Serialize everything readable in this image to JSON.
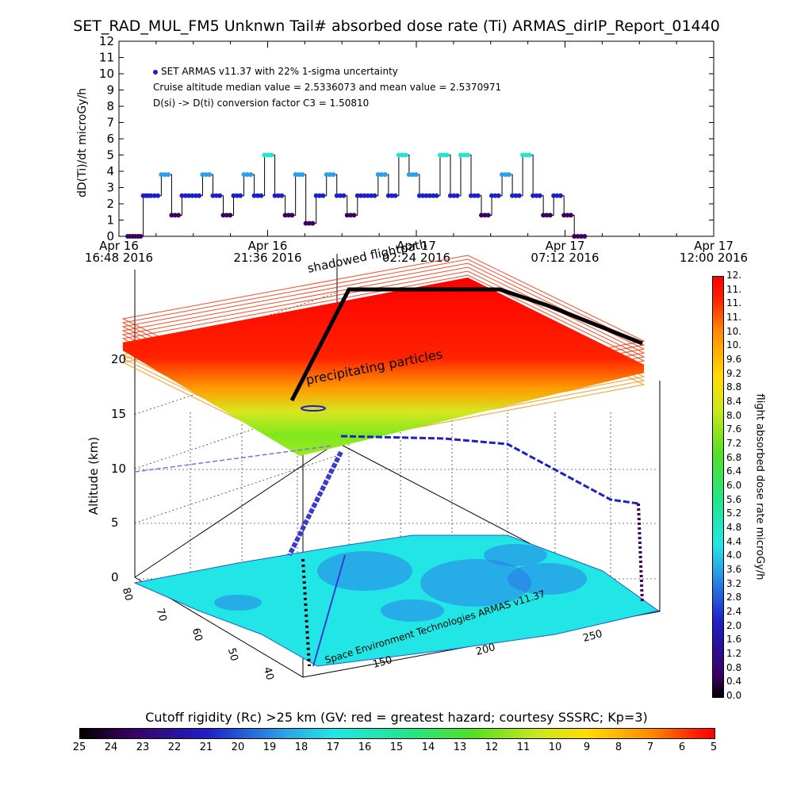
{
  "title": "SET_RAD_MUL_FM5 Unknwn Tail#  absorbed dose rate (Ti) ARMAS_dirIP_Report_01440",
  "top_plot": {
    "ylabel": "dD(Ti)/dt microGy/h",
    "yticks": [
      "0",
      "1",
      "2",
      "3",
      "4",
      "5",
      "6",
      "7",
      "8",
      "9",
      "10",
      "11",
      "12"
    ],
    "xticks": [
      {
        "line1": "Apr 16",
        "line2": "16:48 2016"
      },
      {
        "line1": "Apr 16",
        "line2": "21:36 2016"
      },
      {
        "line1": "Apr 17",
        "line2": "02:24 2016"
      },
      {
        "line1": "Apr 17",
        "line2": "07:12 2016"
      },
      {
        "line1": "Apr 17",
        "line2": "12:00 2016"
      }
    ],
    "legend": {
      "series": "SET ARMAS v11.37 with 22% 1-sigma uncertainty",
      "line2": "Cruise altitude median value = 2.5336073 and mean value = 2.5370971",
      "line3": "D(si) -> D(ti) conversion factor C3 = 1.50810"
    }
  },
  "scene": {
    "altitude_label": "Altitude (km)",
    "altitude_ticks": [
      "0",
      "5",
      "10",
      "15",
      "20"
    ],
    "lon_ticks": [
      "150",
      "200",
      "250"
    ],
    "lat_ticks": [
      "80",
      "70",
      "60",
      "50",
      "40"
    ],
    "annotation_precip": "precipitating particles",
    "annotation_shadow": "shadowed flightpath",
    "credit": "Space Environment Technologies ARMAS v11.37"
  },
  "colorbar_right": {
    "label": "flight absorbed dose rate microGy/h",
    "ticks": [
      "0.0",
      "0.4",
      "0.8",
      "1.2",
      "1.6",
      "2.0",
      "2.4",
      "2.8",
      "3.2",
      "3.6",
      "4.0",
      "4.4",
      "4.8",
      "5.2",
      "5.6",
      "6.0",
      "6.4",
      "6.8",
      "7.2",
      "7.6",
      "8.0",
      "8.4",
      "8.8",
      "9.2",
      "9.6",
      "10.",
      "10.",
      "11.",
      "11.",
      "11.",
      "12."
    ]
  },
  "colorbar_bottom": {
    "title": "Cutoff rigidity (Rc) >25 km (GV: red = greatest hazard; courtesy SSSRC; Kp=3)",
    "ticks": [
      "25",
      "24",
      "23",
      "22",
      "21",
      "20",
      "19",
      "18",
      "17",
      "16",
      "15",
      "14",
      "13",
      "12",
      "11",
      "10",
      "9",
      "8",
      "7",
      "6",
      "5"
    ]
  },
  "colors": {
    "series_dark": "#3a0060",
    "series_blue": "#1f1fc8",
    "series_light": "#2aa0e8",
    "series_cyan": "#22e6d0",
    "plane_red": "#ff0000",
    "plane_green": "#7fe81e",
    "map_cyan": "#22e6e6"
  },
  "chart_data": {
    "type": "line",
    "title": "SET_RAD_MUL_FM5 Unknwn Tail#  absorbed dose rate (Ti) ARMAS_dirIP_Report_01440",
    "xlabel": "",
    "ylabel": "dD(Ti)/dt microGy/h",
    "ylim": [
      0,
      12
    ],
    "x_range": [
      "2016-04-16 16:48",
      "2016-04-17 12:00"
    ],
    "grid": false,
    "legend_position": "top-left",
    "series": [
      {
        "name": "SET ARMAS v11.37 with 22% 1-sigma uncertainty",
        "x": [
          "2016-04-16 17:05",
          "2016-04-16 17:20",
          "2016-04-16 17:35",
          "2016-04-16 17:50",
          "2016-04-16 18:10",
          "2016-04-16 18:30",
          "2016-04-16 18:50",
          "2016-04-16 19:10",
          "2016-04-16 19:30",
          "2016-04-16 19:50",
          "2016-04-16 20:10",
          "2016-04-16 20:30",
          "2016-04-16 20:50",
          "2016-04-16 21:10",
          "2016-04-16 21:30",
          "2016-04-16 21:50",
          "2016-04-16 22:10",
          "2016-04-16 22:30",
          "2016-04-16 22:50",
          "2016-04-16 23:10",
          "2016-04-16 23:30",
          "2016-04-16 23:50",
          "2016-04-17 00:10",
          "2016-04-17 00:30",
          "2016-04-17 00:50",
          "2016-04-17 01:10",
          "2016-04-17 01:30",
          "2016-04-17 01:50",
          "2016-04-17 02:10",
          "2016-04-17 02:30",
          "2016-04-17 02:50",
          "2016-04-17 03:10",
          "2016-04-17 03:30",
          "2016-04-17 03:50",
          "2016-04-17 04:10",
          "2016-04-17 04:30",
          "2016-04-17 04:50",
          "2016-04-17 05:10",
          "2016-04-17 05:30",
          "2016-04-17 05:50",
          "2016-04-17 06:10",
          "2016-04-17 06:30",
          "2016-04-17 06:50",
          "2016-04-17 07:10",
          "2016-04-17 07:30",
          "2016-04-17 07:50"
        ],
        "y": [
          0,
          0,
          2.5,
          2.5,
          3.8,
          1.3,
          2.5,
          2.5,
          3.8,
          2.5,
          1.3,
          2.5,
          3.8,
          2.5,
          5.0,
          2.5,
          1.3,
          3.8,
          0.8,
          2.5,
          3.8,
          2.5,
          1.3,
          2.5,
          2.5,
          3.8,
          2.5,
          5.0,
          3.8,
          2.5,
          2.5,
          5.0,
          2.5,
          5.0,
          2.5,
          1.3,
          2.5,
          3.8,
          2.5,
          5.0,
          2.5,
          1.3,
          2.5,
          1.3,
          0,
          0
        ]
      }
    ],
    "cruise_median": 2.5336073,
    "cruise_mean": 2.5370971,
    "conversion_factor_C3": 1.5081
  }
}
